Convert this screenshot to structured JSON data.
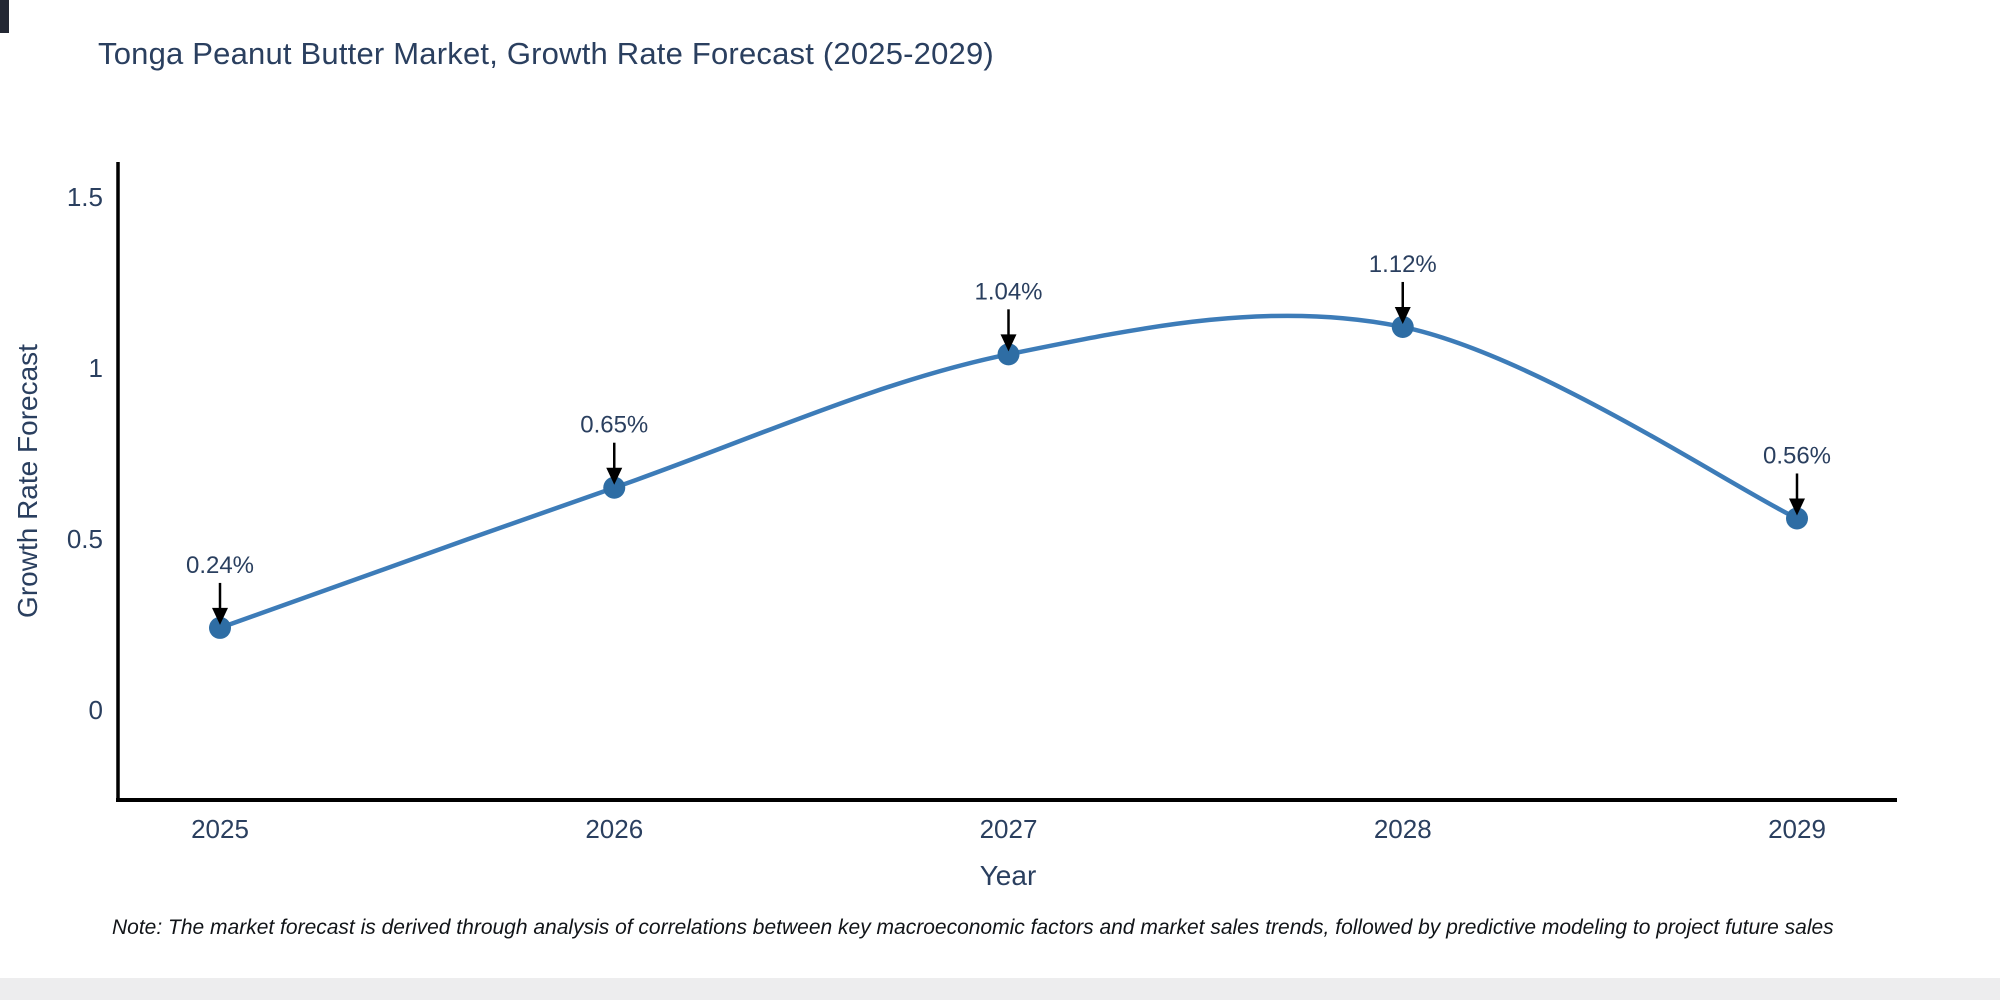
{
  "chart_data": {
    "type": "line",
    "title": "Tonga Peanut Butter Market, Growth Rate Forecast (2025-2029)",
    "xlabel": "Year",
    "ylabel": "Growth Rate Forecast",
    "categories": [
      "2025",
      "2026",
      "2027",
      "2028",
      "2029"
    ],
    "values": [
      0.24,
      0.65,
      1.04,
      1.12,
      0.56
    ],
    "point_labels": [
      "0.24%",
      "0.65%",
      "1.04%",
      "1.12%",
      "0.56%"
    ],
    "y_ticks": {
      "values": [
        0,
        0.5,
        1,
        1.5
      ],
      "labels": [
        "0",
        "0.5",
        "1",
        "1.5"
      ]
    },
    "ylim": [
      -0.26,
      1.6
    ],
    "grid": false,
    "legend": false,
    "line_shape": "spline",
    "annotation_style": "percent labels with black down-arrows above each marker",
    "colors": {
      "line": "#3d7cb8",
      "marker": "#2e6da4",
      "axis": "#000000",
      "arrow": "#000000",
      "text": "#2a3f5f"
    }
  },
  "footnote": {
    "text": "Note: The market forecast is derived through analysis of correlations between key macroeconomic factors and market sales trends, followed by predictive modeling to project future sales"
  }
}
